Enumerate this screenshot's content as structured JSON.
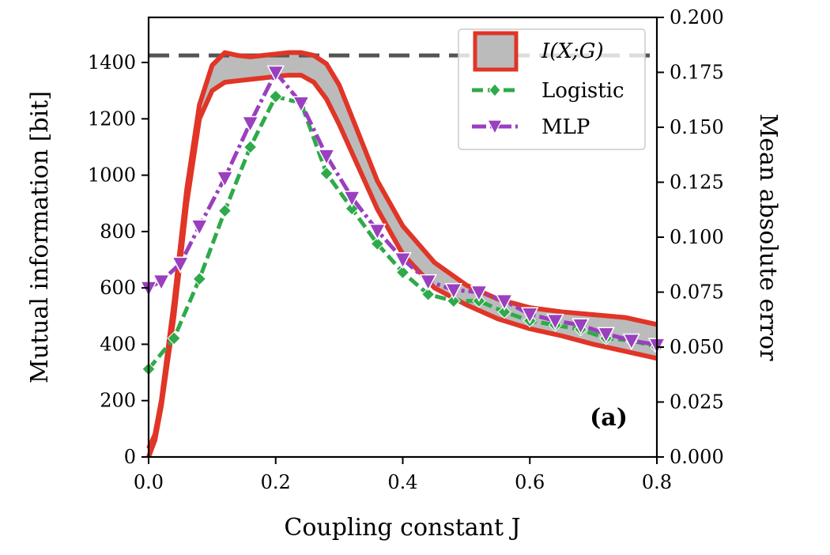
{
  "chart_data": {
    "type": "line",
    "xlabel": "Coupling constant J",
    "ylabel_left": "Mutual information [bit]",
    "ylabel_right": "Mean absolute error",
    "xlim": [
      0,
      0.8
    ],
    "ylim_left": [
      0,
      1560
    ],
    "ylim_right": [
      0,
      0.2
    ],
    "x_ticks": [
      0.0,
      0.2,
      0.4,
      0.6,
      0.8
    ],
    "x_tick_labels": [
      "0.0",
      "0.2",
      "0.4",
      "0.6",
      "0.8"
    ],
    "y_left_ticks": [
      0,
      200,
      400,
      600,
      800,
      1000,
      1200,
      1400
    ],
    "y_left_tick_labels": [
      "0",
      "200",
      "400",
      "600",
      "800",
      "1000",
      "1200",
      "1400"
    ],
    "y_right_ticks": [
      0,
      0.025,
      0.05,
      0.075,
      0.1,
      0.125,
      0.15,
      0.175,
      0.2
    ],
    "y_right_tick_labels": [
      "0.000",
      "0.025",
      "0.050",
      "0.075",
      "0.100",
      "0.125",
      "0.150",
      "0.175",
      "0.200"
    ],
    "panel_label": "(a)",
    "reference_line": {
      "y": 1425,
      "style": "dashed",
      "color": "#555555"
    },
    "grid": false,
    "legend_position": "top-right",
    "band": {
      "name": "I(X;G)",
      "axis": "left",
      "fill": "#bbbbbb",
      "edge_color": "#e03527",
      "x": [
        0.0,
        0.01,
        0.02,
        0.04,
        0.06,
        0.08,
        0.1,
        0.12,
        0.14,
        0.16,
        0.18,
        0.2,
        0.22,
        0.24,
        0.26,
        0.28,
        0.3,
        0.33,
        0.36,
        0.4,
        0.45,
        0.5,
        0.55,
        0.6,
        0.65,
        0.7,
        0.75,
        0.8
      ],
      "upper": [
        30,
        80,
        200,
        550,
        950,
        1250,
        1390,
        1435,
        1425,
        1420,
        1425,
        1430,
        1435,
        1435,
        1425,
        1395,
        1320,
        1150,
        980,
        820,
        690,
        610,
        560,
        530,
        515,
        505,
        495,
        470
      ],
      "lower": [
        0,
        60,
        180,
        500,
        900,
        1200,
        1300,
        1330,
        1335,
        1340,
        1345,
        1350,
        1355,
        1355,
        1330,
        1270,
        1180,
        1030,
        880,
        720,
        600,
        540,
        490,
        455,
        430,
        400,
        375,
        350
      ]
    },
    "series": [
      {
        "name": "Logistic",
        "axis": "right",
        "color": "#2eaa4a",
        "marker": "diamond",
        "x": [
          0.0,
          0.04,
          0.08,
          0.12,
          0.16,
          0.2,
          0.24,
          0.28,
          0.32,
          0.36,
          0.4,
          0.44,
          0.48,
          0.52,
          0.56,
          0.6,
          0.64,
          0.68,
          0.72,
          0.76,
          0.8
        ],
        "values": [
          0.04,
          0.054,
          0.081,
          0.112,
          0.141,
          0.164,
          0.161,
          0.129,
          0.113,
          0.097,
          0.084,
          0.074,
          0.071,
          0.071,
          0.066,
          0.062,
          0.06,
          0.058,
          0.054,
          0.053,
          0.05
        ]
      },
      {
        "name": "MLP",
        "axis": "right",
        "color": "#9a3fbf",
        "marker": "triangle-down",
        "x": [
          0.0,
          0.02,
          0.05,
          0.08,
          0.12,
          0.16,
          0.2,
          0.24,
          0.28,
          0.32,
          0.36,
          0.4,
          0.44,
          0.48,
          0.52,
          0.56,
          0.6,
          0.64,
          0.68,
          0.72,
          0.76,
          0.8
        ],
        "values": [
          0.077,
          0.08,
          0.088,
          0.105,
          0.127,
          0.152,
          0.175,
          0.161,
          0.137,
          0.118,
          0.103,
          0.09,
          0.08,
          0.076,
          0.075,
          0.071,
          0.065,
          0.062,
          0.06,
          0.056,
          0.053,
          0.051
        ]
      }
    ]
  }
}
